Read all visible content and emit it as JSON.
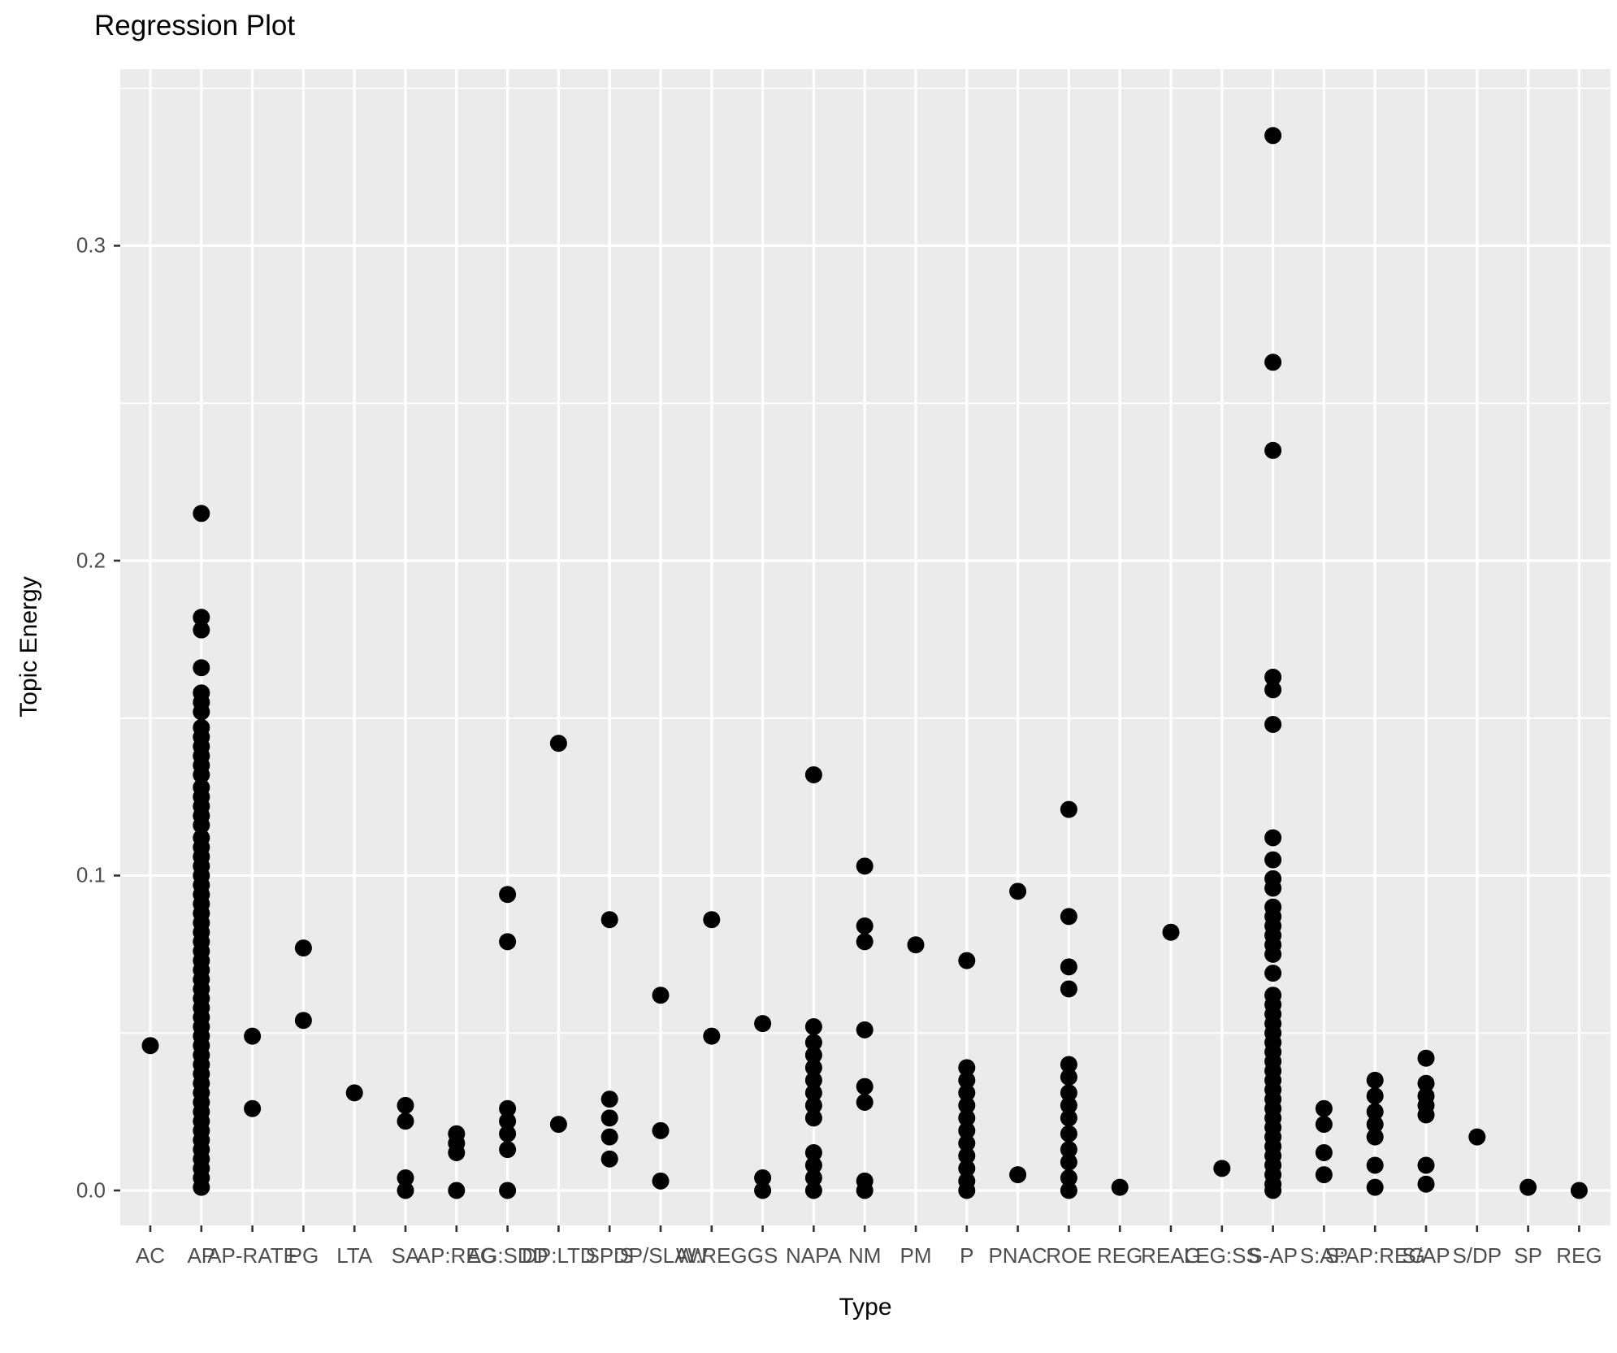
{
  "title": "Regression Plot",
  "colors": {
    "panel_background": "#EBEBEB",
    "grid_major": "#FFFFFF",
    "grid_minor": "#FFFFFF",
    "point": "#000000",
    "tick_mark": "#333333",
    "tick_label": "#4D4D4D",
    "text": "#000000",
    "page_background": "#FFFFFF"
  },
  "chart_data": {
    "type": "scatter",
    "title": "Regression Plot",
    "xlabel": "Type",
    "ylabel": "Topic Energy",
    "legend": "none",
    "grid": "white major/minor horizontal lines and white vertical category lines on grey panel",
    "ylim": [
      -0.0111,
      0.3561
    ],
    "y_breaks": [
      0.0,
      0.1,
      0.2,
      0.3
    ],
    "y_minor_breaks": [
      0.05,
      0.15,
      0.25,
      0.35
    ],
    "y_tick_labels": [
      "0.0",
      "0.1",
      "0.2",
      "0.3"
    ],
    "categories": [
      "AC",
      "AP",
      "AP-RATE",
      "PG",
      "LTA",
      "SA",
      "AP:REG",
      "AG:SDD",
      "DP:LTD",
      "SP:S",
      "DP/SLAW",
      "W:REG",
      "GS",
      "NAPA",
      "NM",
      "PM",
      "P",
      "PNAC",
      "ROE",
      "REG",
      "REAG",
      "LEG:SS",
      "S-AP",
      "S:AP",
      "S:AP:REG",
      "S/AP",
      "S/DP",
      "SP",
      "REG"
    ],
    "series": [
      {
        "name": "Topic Energy",
        "values": [
          [
            0.046
          ],
          [
            0.215,
            0.182,
            0.178,
            0.166,
            0.158,
            0.155,
            0.152,
            0.147,
            0.144,
            0.141,
            0.138,
            0.135,
            0.132,
            0.128,
            0.125,
            0.122,
            0.119,
            0.116,
            0.112,
            0.109,
            0.106,
            0.103,
            0.1,
            0.097,
            0.094,
            0.091,
            0.088,
            0.085,
            0.082,
            0.079,
            0.076,
            0.073,
            0.07,
            0.067,
            0.064,
            0.061,
            0.058,
            0.055,
            0.052,
            0.049,
            0.046,
            0.043,
            0.04,
            0.037,
            0.034,
            0.031,
            0.028,
            0.025,
            0.022,
            0.019,
            0.016,
            0.013,
            0.01,
            0.007,
            0.004,
            0.001
          ],
          [
            0.049,
            0.026
          ],
          [
            0.077,
            0.054
          ],
          [
            0.031
          ],
          [
            0.027,
            0.022,
            0.004,
            0.0
          ],
          [
            0.018,
            0.015,
            0.012,
            0.0
          ],
          [
            0.094,
            0.079,
            0.026,
            0.022,
            0.018,
            0.013,
            0.0
          ],
          [
            0.142,
            0.021
          ],
          [
            0.086,
            0.029,
            0.023,
            0.017,
            0.01
          ],
          [
            0.062,
            0.019,
            0.003
          ],
          [
            0.086,
            0.049
          ],
          [
            0.053,
            0.004,
            0.0
          ],
          [
            0.132,
            0.052,
            0.047,
            0.043,
            0.039,
            0.035,
            0.031,
            0.027,
            0.023,
            0.012,
            0.008,
            0.004,
            0.0
          ],
          [
            0.103,
            0.084,
            0.079,
            0.051,
            0.033,
            0.028,
            0.003,
            0.0
          ],
          [
            0.078
          ],
          [
            0.073,
            0.039,
            0.035,
            0.031,
            0.027,
            0.023,
            0.019,
            0.015,
            0.011,
            0.007,
            0.003,
            0.0
          ],
          [
            0.095,
            0.005
          ],
          [
            0.121,
            0.087,
            0.071,
            0.064,
            0.04,
            0.036,
            0.031,
            0.027,
            0.023,
            0.018,
            0.013,
            0.009,
            0.004,
            0.0
          ],
          [
            0.001
          ],
          [
            0.082
          ],
          [
            0.007
          ],
          [
            0.335,
            0.263,
            0.235,
            0.163,
            0.159,
            0.148,
            0.112,
            0.105,
            0.099,
            0.096,
            0.09,
            0.087,
            0.084,
            0.081,
            0.078,
            0.075,
            0.069,
            0.062,
            0.059,
            0.056,
            0.053,
            0.05,
            0.047,
            0.044,
            0.041,
            0.038,
            0.035,
            0.032,
            0.029,
            0.026,
            0.023,
            0.02,
            0.017,
            0.014,
            0.011,
            0.008,
            0.005,
            0.002,
            0.0
          ],
          [
            0.026,
            0.021,
            0.012,
            0.005
          ],
          [
            0.035,
            0.03,
            0.025,
            0.021,
            0.017,
            0.008,
            0.001
          ],
          [
            0.042,
            0.034,
            0.03,
            0.027,
            0.024,
            0.008,
            0.002
          ],
          [
            0.017
          ],
          [
            0.001
          ],
          [
            0.0
          ]
        ]
      }
    ]
  }
}
